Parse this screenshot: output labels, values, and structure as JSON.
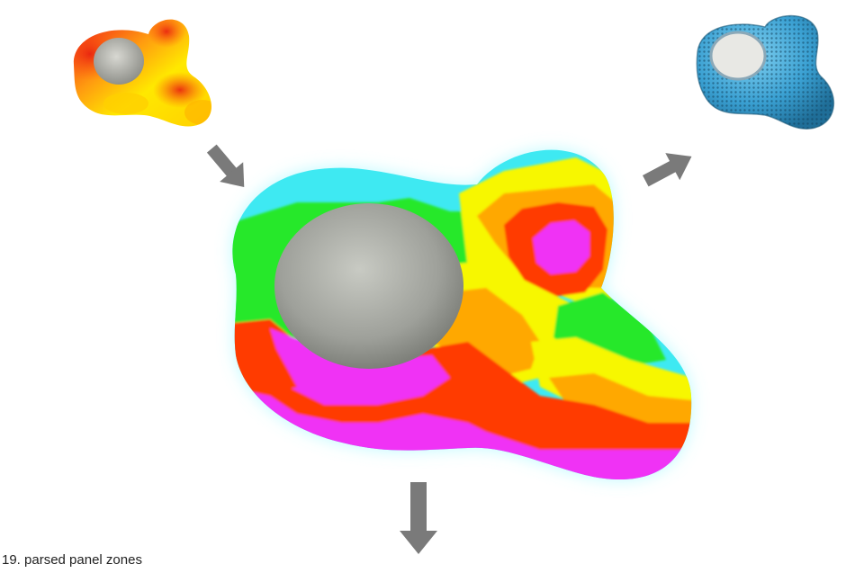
{
  "caption": {
    "text": "19. parsed panel zones"
  },
  "figure": {
    "input_render": {
      "icon": "heatmap-blob-icon"
    },
    "zone_map": {
      "icon": "zone-map-blob-icon"
    },
    "output_render": {
      "icon": "perforated-panel-blob-icon"
    },
    "arrows": {
      "icon": "arrow-icon",
      "color": "#7a7a7a"
    }
  },
  "colors": {
    "hole": "#9fa09a",
    "arrow": "#7a7a7a",
    "heat_yellow": "#ffe800",
    "heat_red": "#f02010",
    "zone_cyan": "#3ee9f2",
    "zone_green": "#25e82a",
    "zone_yellow": "#f7f700",
    "zone_orange": "#ffa800",
    "zone_red": "#ff3a00",
    "zone_magenta": "#f032f5",
    "panel_blue": "#3ba3d4"
  }
}
